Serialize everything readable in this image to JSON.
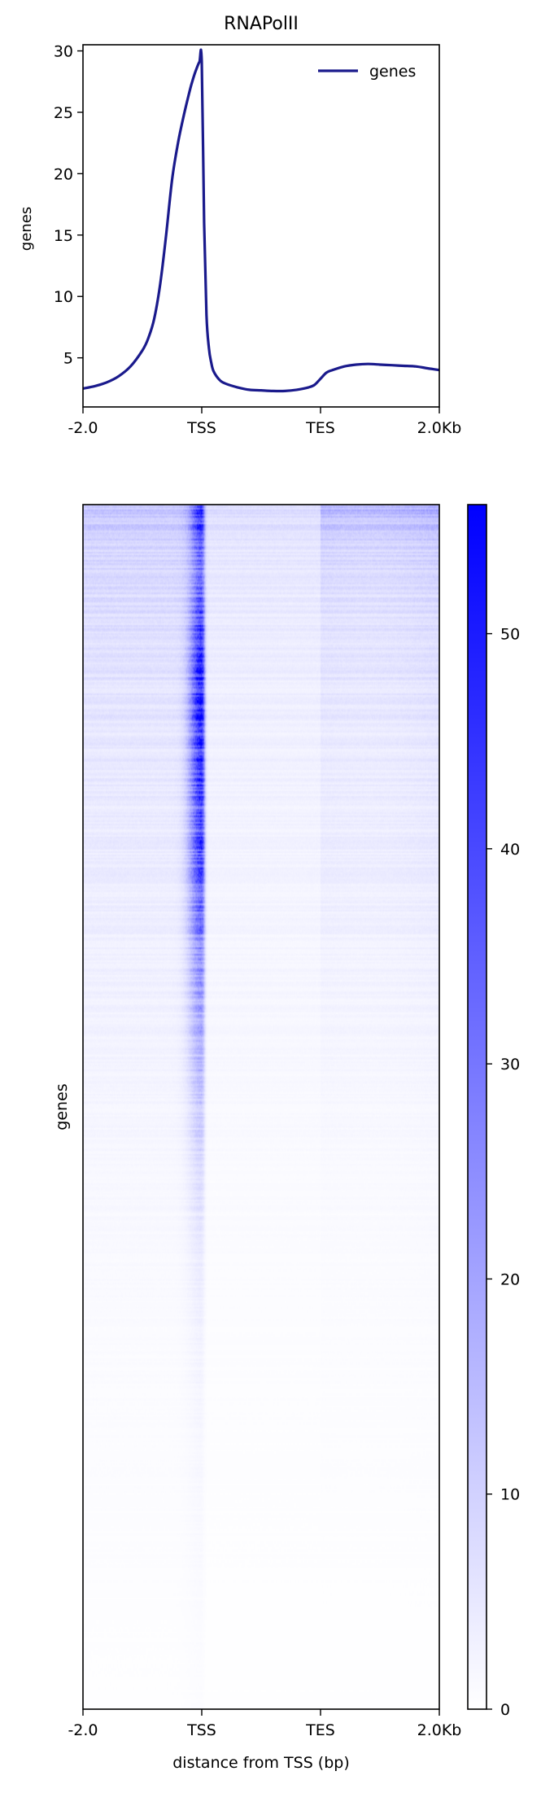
{
  "chart_data": [
    {
      "type": "line",
      "title": "RNAPolII",
      "ylabel": "genes",
      "xlabel": "",
      "x_tick_labels": [
        "-2.0",
        "TSS",
        "TES",
        "2.0Kb"
      ],
      "x_region_positions": [
        0,
        1,
        2,
        3
      ],
      "ylim": [
        1,
        30.5
      ],
      "y_ticks": [
        5,
        10,
        15,
        20,
        25,
        30
      ],
      "legend": {
        "placement": "top-right",
        "entries": [
          "genes"
        ]
      },
      "grid": false,
      "series": [
        {
          "name": "genes",
          "color": "#1a1a8c",
          "x": [
            0,
            0.1,
            0.2,
            0.3,
            0.4,
            0.5,
            0.55,
            0.6,
            0.65,
            0.7,
            0.75,
            0.8,
            0.85,
            0.9,
            0.92,
            0.95,
            0.98,
            1.0,
            1.02,
            1.04,
            1.06,
            1.08,
            1.1,
            1.15,
            1.2,
            1.3,
            1.4,
            1.5,
            1.6,
            1.7,
            1.8,
            1.9,
            1.95,
            2.0,
            2.05,
            2.1,
            2.2,
            2.3,
            2.4,
            2.5,
            2.6,
            2.7,
            2.8,
            2.9,
            3.0
          ],
          "y": [
            2.5,
            2.7,
            3.0,
            3.5,
            4.3,
            5.6,
            6.6,
            8.2,
            11.0,
            15.0,
            19.5,
            22.5,
            24.8,
            26.8,
            27.5,
            28.4,
            29.1,
            29.1,
            16.0,
            8.5,
            5.8,
            4.6,
            3.9,
            3.2,
            2.9,
            2.6,
            2.4,
            2.35,
            2.3,
            2.3,
            2.4,
            2.6,
            2.8,
            3.3,
            3.8,
            4.0,
            4.3,
            4.45,
            4.5,
            4.45,
            4.4,
            4.35,
            4.3,
            4.15,
            4.0
          ]
        }
      ]
    },
    {
      "type": "heatmap",
      "title": "",
      "ylabel": "genes",
      "xlabel": "distance from TSS (bp)",
      "x_tick_labels": [
        "-2.0",
        "TSS",
        "TES",
        "2.0Kb"
      ],
      "x_region_positions": [
        0,
        1,
        2,
        3
      ],
      "color_low": "#ffffff",
      "color_high": "#0000ff",
      "colorbar": {
        "min": 0,
        "max": 56,
        "ticks": [
          0,
          10,
          20,
          30,
          40,
          50
        ]
      },
      "row_fraction_samples": [
        0,
        0.01,
        0.03,
        0.06,
        0.1,
        0.15,
        0.2,
        0.3,
        0.4,
        0.5,
        0.6,
        0.7,
        0.8,
        0.9,
        1.0
      ],
      "tss_peak_by_row": [
        50,
        45,
        36,
        30,
        42,
        52,
        46,
        38,
        22,
        12,
        5,
        2.5,
        1.5,
        1.0,
        0.5
      ],
      "background_by_row": [
        14,
        11,
        9,
        8,
        7,
        6,
        5,
        4,
        3,
        2,
        1.3,
        0.8,
        0.6,
        0.4,
        0.2
      ],
      "genebody_by_row": [
        30,
        20,
        15,
        12,
        10,
        9,
        7,
        6,
        4,
        2.5,
        1.5,
        1.0,
        0.7,
        0.4,
        0.2
      ]
    }
  ]
}
